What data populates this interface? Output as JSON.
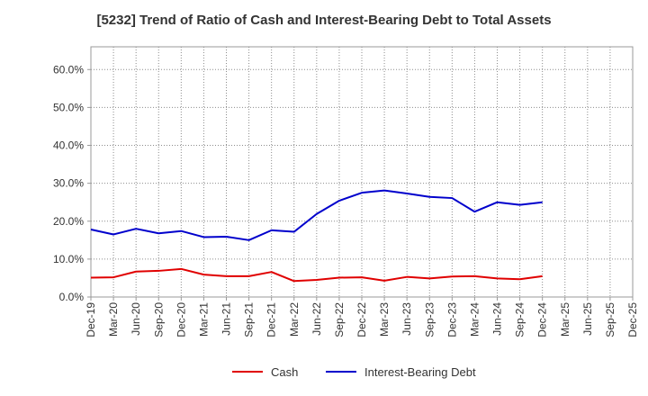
{
  "chart_data": {
    "type": "line",
    "title": "[5232]  Trend of Ratio of Cash and Interest-Bearing Debt to Total Assets",
    "x_tick_labels": [
      "Dec-19",
      "Mar-20",
      "Jun-20",
      "Sep-20",
      "Dec-20",
      "Mar-21",
      "Jun-21",
      "Sep-21",
      "Dec-21",
      "Mar-22",
      "Jun-22",
      "Sep-22",
      "Dec-22",
      "Mar-23",
      "Jun-23",
      "Sep-23",
      "Dec-23",
      "Mar-24",
      "Jun-24",
      "Sep-24",
      "Dec-24",
      "Mar-25",
      "Jun-25",
      "Sep-25",
      "Dec-25"
    ],
    "y_tick_labels": [
      "0.0%",
      "10.0%",
      "20.0%",
      "30.0%",
      "40.0%",
      "50.0%",
      "60.0%"
    ],
    "y_ticks": [
      0,
      10,
      20,
      30,
      40,
      50,
      60
    ],
    "ylim": [
      0,
      66
    ],
    "grid": true,
    "legend_position": "bottom-center",
    "x": [
      "Dec-19",
      "Mar-20",
      "Jun-20",
      "Sep-20",
      "Dec-20",
      "Mar-21",
      "Jun-21",
      "Sep-21",
      "Dec-21",
      "Mar-22",
      "Jun-22",
      "Sep-22",
      "Dec-22",
      "Mar-23",
      "Jun-23",
      "Sep-23",
      "Dec-23",
      "Mar-24",
      "Jun-24",
      "Sep-24",
      "Dec-24"
    ],
    "series": [
      {
        "name": "Cash",
        "color": "#e00000",
        "values": [
          5.1,
          5.2,
          6.7,
          6.9,
          7.4,
          5.9,
          5.5,
          5.5,
          6.6,
          4.2,
          4.5,
          5.1,
          5.2,
          4.3,
          5.3,
          4.9,
          5.4,
          5.5,
          4.9,
          4.7,
          5.5
        ]
      },
      {
        "name": "Interest-Bearing Debt",
        "color": "#0000cc",
        "values": [
          17.8,
          16.5,
          18.0,
          16.8,
          17.4,
          15.8,
          15.9,
          15.0,
          17.6,
          17.2,
          21.9,
          25.4,
          27.5,
          28.1,
          27.3,
          26.4,
          26.1,
          22.5,
          25.0,
          24.3,
          25.0
        ]
      }
    ]
  }
}
